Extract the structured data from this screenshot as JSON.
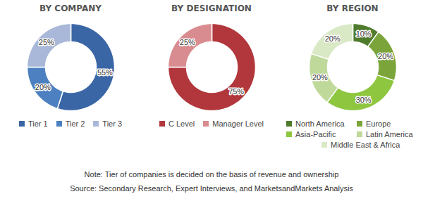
{
  "chart_data": [
    {
      "type": "donut",
      "title": "BY COMPANY",
      "categories": [
        "Tier 1",
        "Tier 2",
        "Tier 3"
      ],
      "values": [
        55,
        20,
        25
      ],
      "value_labels": [
        "55%",
        "20%",
        "25%"
      ],
      "colors": [
        "#3b66a6",
        "#4d80c0",
        "#a9b8d8"
      ],
      "data_labels": true,
      "legend": "bottom"
    },
    {
      "type": "donut",
      "title": "BY DESIGNATION",
      "categories": [
        "C Level",
        "Manager Level"
      ],
      "values": [
        75,
        25
      ],
      "value_labels": [
        "75%",
        "25%"
      ],
      "colors": [
        "#b1373c",
        "#d98c8f"
      ],
      "data_labels": true,
      "legend": "bottom"
    },
    {
      "type": "donut",
      "title": "BY REGION",
      "categories": [
        "North America",
        "Europe",
        "Asia-Pacific",
        "Latin America",
        "Middle East & Africa"
      ],
      "values": [
        10,
        20,
        30,
        20,
        20
      ],
      "value_labels": [
        "10%",
        "20%",
        "30%",
        "20%",
        "20%"
      ],
      "colors": [
        "#4f7b2d",
        "#7ba53b",
        "#8ec640",
        "#bfd99b",
        "#d9e8c5"
      ],
      "data_labels": true,
      "legend": "bottom"
    }
  ],
  "note": "Note: Tier of companies is decided on the basis of revenue and ownership",
  "source": "Source: Secondary Research, Expert Interviews, and MarketsandMarkets Analysis"
}
